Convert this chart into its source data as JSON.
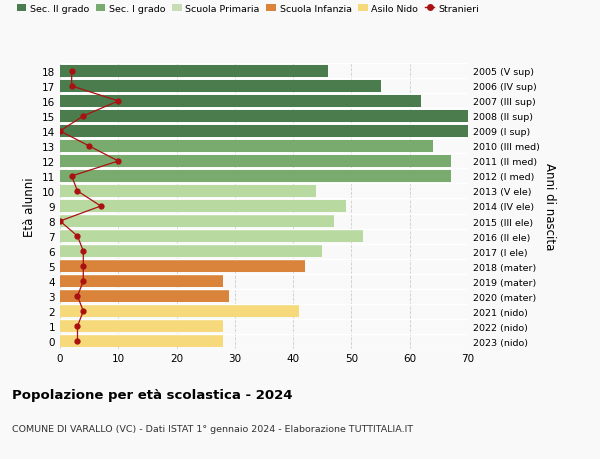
{
  "ages": [
    18,
    17,
    16,
    15,
    14,
    13,
    12,
    11,
    10,
    9,
    8,
    7,
    6,
    5,
    4,
    3,
    2,
    1,
    0
  ],
  "years": [
    "2005 (V sup)",
    "2006 (IV sup)",
    "2007 (III sup)",
    "2008 (II sup)",
    "2009 (I sup)",
    "2010 (III med)",
    "2011 (II med)",
    "2012 (I med)",
    "2013 (V ele)",
    "2014 (IV ele)",
    "2015 (III ele)",
    "2016 (II ele)",
    "2017 (I ele)",
    "2018 (mater)",
    "2019 (mater)",
    "2020 (mater)",
    "2021 (nido)",
    "2022 (nido)",
    "2023 (nido)"
  ],
  "bar_values": [
    46,
    55,
    62,
    70,
    70,
    64,
    67,
    67,
    44,
    49,
    47,
    52,
    45,
    42,
    28,
    29,
    41,
    28,
    28
  ],
  "bar_colors": [
    "#4a7c4e",
    "#4a7c4e",
    "#4a7c4e",
    "#4a7c4e",
    "#4a7c4e",
    "#7aab6e",
    "#7aab6e",
    "#7aab6e",
    "#b8d9a0",
    "#b8d9a0",
    "#b8d9a0",
    "#b8d9a0",
    "#b8d9a0",
    "#d9843a",
    "#d9843a",
    "#d9843a",
    "#f5d97a",
    "#f5d97a",
    "#f5d97a"
  ],
  "stranieri_values": [
    2,
    2,
    10,
    4,
    0,
    5,
    10,
    2,
    3,
    7,
    0,
    3,
    4,
    4,
    4,
    3,
    4,
    3,
    3
  ],
  "legend_labels": [
    "Sec. II grado",
    "Sec. I grado",
    "Scuola Primaria",
    "Scuola Infanzia",
    "Asilo Nido",
    "Stranieri"
  ],
  "legend_colors": [
    "#4a7c4e",
    "#7aab6e",
    "#c8ddb4",
    "#d9843a",
    "#f5d97a",
    "#aa1111"
  ],
  "ylabel_text": "Età alunni",
  "right_ylabel_text": "Anni di nascita",
  "title_bold": "Popolazione per età scolastica - 2024",
  "subtitle": "COMUNE DI VARALLO (VC) - Dati ISTAT 1° gennaio 2024 - Elaborazione TUTTITALIA.IT",
  "xlim": [
    0,
    70
  ],
  "ylim": [
    -0.5,
    18.5
  ],
  "bg_color": "#f9f9f9",
  "grid_color": "#cccccc",
  "stranieri_line_color": "#aa1111",
  "stranieri_dot_color": "#aa1111"
}
